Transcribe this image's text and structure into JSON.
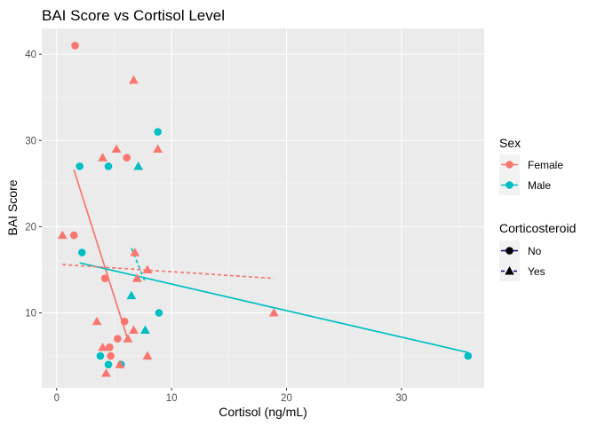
{
  "chart_data": {
    "type": "scatter",
    "title": "BAI Score vs Cortisol Level",
    "xlabel": "Cortisol (ng/mL)",
    "ylabel": "BAI Score",
    "xlim": [
      -1.3,
      37.2
    ],
    "ylim": [
      1.3,
      43.0
    ],
    "xticks": [
      0,
      10,
      20,
      30
    ],
    "yticks": [
      10,
      20,
      30,
      40
    ],
    "grid": true,
    "colors": {
      "Female": "#F8766D",
      "Male": "#00BFC4",
      "panel": "#EBEBEB",
      "legend_line": "#00008B"
    },
    "legend_position": "right",
    "legend_sex": {
      "title": "Sex",
      "entries": [
        "Female",
        "Male"
      ]
    },
    "legend_corticosteroid": {
      "title": "Corticosteroid",
      "entries": [
        "No",
        "Yes"
      ]
    },
    "points": [
      {
        "x": 1.6,
        "y": 41,
        "sex": "Female",
        "corticosteroid": "No"
      },
      {
        "x": 1.5,
        "y": 19,
        "sex": "Female",
        "corticosteroid": "No"
      },
      {
        "x": 4.2,
        "y": 14,
        "sex": "Female",
        "corticosteroid": "No"
      },
      {
        "x": 4.6,
        "y": 6,
        "sex": "Female",
        "corticosteroid": "No"
      },
      {
        "x": 4.7,
        "y": 5,
        "sex": "Female",
        "corticosteroid": "No"
      },
      {
        "x": 5.3,
        "y": 7,
        "sex": "Female",
        "corticosteroid": "No"
      },
      {
        "x": 5.9,
        "y": 9,
        "sex": "Female",
        "corticosteroid": "No"
      },
      {
        "x": 6.1,
        "y": 28,
        "sex": "Female",
        "corticosteroid": "No"
      },
      {
        "x": 2.0,
        "y": 27,
        "sex": "Male",
        "corticosteroid": "No"
      },
      {
        "x": 2.2,
        "y": 17,
        "sex": "Male",
        "corticosteroid": "No"
      },
      {
        "x": 3.8,
        "y": 5,
        "sex": "Male",
        "corticosteroid": "No"
      },
      {
        "x": 4.5,
        "y": 27,
        "sex": "Male",
        "corticosteroid": "No"
      },
      {
        "x": 4.5,
        "y": 4,
        "sex": "Male",
        "corticosteroid": "No"
      },
      {
        "x": 5.6,
        "y": 4,
        "sex": "Male",
        "corticosteroid": "No"
      },
      {
        "x": 8.8,
        "y": 31,
        "sex": "Male",
        "corticosteroid": "No"
      },
      {
        "x": 8.9,
        "y": 10,
        "sex": "Male",
        "corticosteroid": "No"
      },
      {
        "x": 35.8,
        "y": 5,
        "sex": "Male",
        "corticosteroid": "No"
      },
      {
        "x": 0.5,
        "y": 19,
        "sex": "Female",
        "corticosteroid": "Yes"
      },
      {
        "x": 3.5,
        "y": 9,
        "sex": "Female",
        "corticosteroid": "Yes"
      },
      {
        "x": 4.0,
        "y": 28,
        "sex": "Female",
        "corticosteroid": "Yes"
      },
      {
        "x": 4.0,
        "y": 6,
        "sex": "Female",
        "corticosteroid": "Yes"
      },
      {
        "x": 4.3,
        "y": 3,
        "sex": "Female",
        "corticosteroid": "Yes"
      },
      {
        "x": 5.2,
        "y": 29,
        "sex": "Female",
        "corticosteroid": "Yes"
      },
      {
        "x": 5.5,
        "y": 4,
        "sex": "Female",
        "corticosteroid": "Yes"
      },
      {
        "x": 6.2,
        "y": 7,
        "sex": "Female",
        "corticosteroid": "Yes"
      },
      {
        "x": 6.7,
        "y": 37,
        "sex": "Female",
        "corticosteroid": "Yes"
      },
      {
        "x": 6.7,
        "y": 8,
        "sex": "Female",
        "corticosteroid": "Yes"
      },
      {
        "x": 6.8,
        "y": 17,
        "sex": "Female",
        "corticosteroid": "Yes"
      },
      {
        "x": 7.0,
        "y": 14,
        "sex": "Female",
        "corticosteroid": "Yes"
      },
      {
        "x": 7.9,
        "y": 15,
        "sex": "Female",
        "corticosteroid": "Yes"
      },
      {
        "x": 7.9,
        "y": 5,
        "sex": "Female",
        "corticosteroid": "Yes"
      },
      {
        "x": 8.8,
        "y": 29,
        "sex": "Female",
        "corticosteroid": "Yes"
      },
      {
        "x": 18.9,
        "y": 10,
        "sex": "Female",
        "corticosteroid": "Yes"
      },
      {
        "x": 6.5,
        "y": 12,
        "sex": "Male",
        "corticosteroid": "Yes"
      },
      {
        "x": 7.1,
        "y": 27,
        "sex": "Male",
        "corticosteroid": "Yes"
      },
      {
        "x": 7.7,
        "y": 8,
        "sex": "Male",
        "corticosteroid": "Yes"
      }
    ],
    "fit_lines": [
      {
        "sex": "Female",
        "corticosteroid": "No",
        "x": [
          1.5,
          6.1
        ],
        "y": [
          26.6,
          7.3
        ]
      },
      {
        "sex": "Male",
        "corticosteroid": "No",
        "x": [
          2.0,
          35.8
        ],
        "y": [
          15.8,
          5.4
        ]
      },
      {
        "sex": "Female",
        "corticosteroid": "Yes",
        "x": [
          0.5,
          18.9
        ],
        "y": [
          15.6,
          14.0
        ]
      },
      {
        "sex": "Male",
        "corticosteroid": "Yes",
        "x": [
          6.5,
          7.7
        ],
        "y": [
          17.5,
          13.6
        ]
      }
    ]
  }
}
